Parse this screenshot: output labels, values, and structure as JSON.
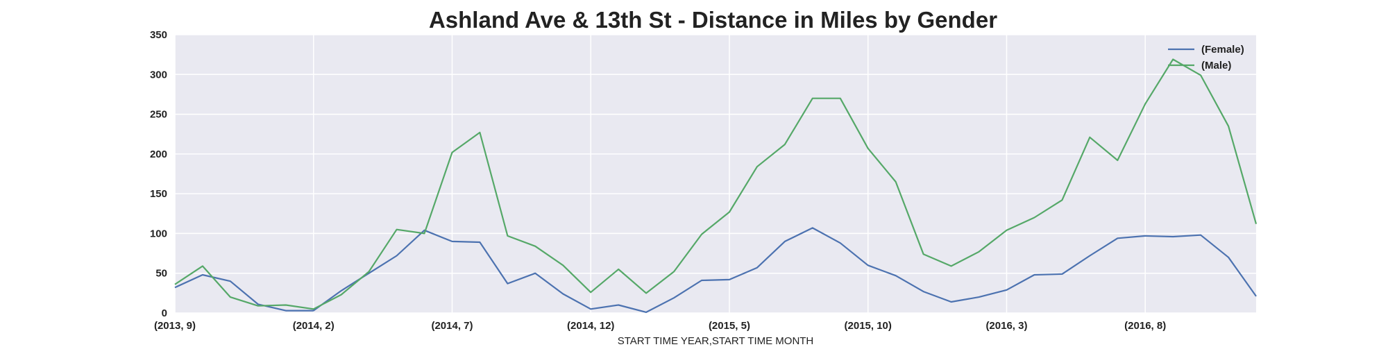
{
  "chart_data": {
    "type": "line",
    "title": "Ashland Ave & 13th St - Distance in Miles by Gender",
    "xlabel": "START TIME YEAR,START TIME MONTH",
    "ylabel": "",
    "ylim": [
      0,
      350
    ],
    "yticks": [
      0,
      50,
      100,
      150,
      200,
      250,
      300,
      350
    ],
    "grid": true,
    "legend_position": "top-right",
    "background": "#e9e9f1",
    "x": [
      "(2013, 9)",
      "(2013, 10)",
      "(2013, 11)",
      "(2013, 12)",
      "(2014, 1)",
      "(2014, 2)",
      "(2014, 3)",
      "(2014, 4)",
      "(2014, 5)",
      "(2014, 6)",
      "(2014, 7)",
      "(2014, 8)",
      "(2014, 9)",
      "(2014, 10)",
      "(2014, 11)",
      "(2014, 12)",
      "(2015, 1)",
      "(2015, 2)",
      "(2015, 3)",
      "(2015, 4)",
      "(2015, 5)",
      "(2015, 6)",
      "(2015, 7)",
      "(2015, 8)",
      "(2015, 9)",
      "(2015, 10)",
      "(2015, 11)",
      "(2015, 12)",
      "(2016, 1)",
      "(2016, 2)",
      "(2016, 3)",
      "(2016, 4)",
      "(2016, 5)",
      "(2016, 6)",
      "(2016, 7)",
      "(2016, 8)",
      "(2016, 9)",
      "(2016, 10)",
      "(2016, 11)",
      "(2016, 12)"
    ],
    "xtick_labels": [
      "(2013, 9)",
      "(2014, 2)",
      "(2014, 7)",
      "(2014, 12)",
      "(2015, 5)",
      "(2015, 10)",
      "(2016, 3)",
      "(2016, 8)"
    ],
    "series": [
      {
        "name": "(Female)",
        "color": "#4c72b0",
        "values": [
          32,
          48,
          40,
          11,
          3,
          3,
          28,
          50,
          72,
          104,
          90,
          89,
          37,
          50,
          24,
          5,
          10,
          1,
          19,
          41,
          42,
          57,
          90,
          107,
          88,
          60,
          47,
          27,
          14,
          20,
          29,
          48,
          49,
          72,
          94,
          97,
          96,
          98,
          70,
          21
        ]
      },
      {
        "name": "(Male)",
        "color": "#55a868",
        "values": [
          36,
          59,
          20,
          9,
          10,
          5,
          23,
          52,
          105,
          100,
          202,
          227,
          97,
          84,
          60,
          26,
          55,
          25,
          52,
          99,
          127,
          184,
          212,
          270,
          270,
          207,
          165,
          74,
          59,
          77,
          104,
          120,
          142,
          221,
          192,
          263,
          319,
          299,
          235,
          112
        ]
      }
    ]
  }
}
